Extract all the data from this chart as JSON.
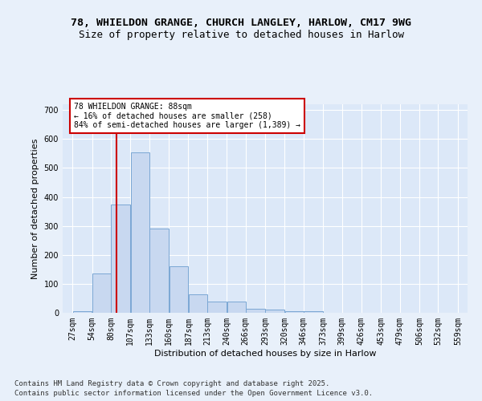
{
  "title1": "78, WHIELDON GRANGE, CHURCH LANGLEY, HARLOW, CM17 9WG",
  "title2": "Size of property relative to detached houses in Harlow",
  "xlabel": "Distribution of detached houses by size in Harlow",
  "ylabel": "Number of detached properties",
  "bins": [
    27,
    54,
    80,
    107,
    133,
    160,
    187,
    213,
    240,
    266,
    293,
    320,
    346,
    373,
    399,
    426,
    453,
    479,
    506,
    532,
    559
  ],
  "counts": [
    5,
    135,
    375,
    555,
    290,
    160,
    65,
    40,
    40,
    15,
    10,
    5,
    5,
    0,
    0,
    0,
    0,
    0,
    0,
    0
  ],
  "bar_color": "#c8d8f0",
  "bar_edge_color": "#7ba7d4",
  "bg_color": "#dce8f8",
  "grid_color": "#ffffff",
  "red_line_x": 88,
  "annotation_text": "78 WHIELDON GRANGE: 88sqm\n← 16% of detached houses are smaller (258)\n84% of semi-detached houses are larger (1,389) →",
  "annotation_box_color": "#ffffff",
  "annotation_box_edge_color": "#cc0000",
  "annotation_text_color": "#000000",
  "red_line_color": "#cc0000",
  "ylim": [
    0,
    720
  ],
  "yticks": [
    0,
    100,
    200,
    300,
    400,
    500,
    600,
    700
  ],
  "footer_text": "Contains HM Land Registry data © Crown copyright and database right 2025.\nContains public sector information licensed under the Open Government Licence v3.0.",
  "title_fontsize": 9.5,
  "subtitle_fontsize": 9,
  "axis_label_fontsize": 8,
  "tick_fontsize": 7,
  "footer_fontsize": 6.5,
  "fig_bg_color": "#e8f0fa"
}
